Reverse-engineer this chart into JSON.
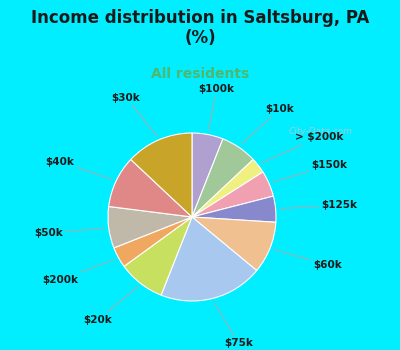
{
  "title": "Income distribution in Saltsburg, PA\n(%)",
  "subtitle": "All residents",
  "title_color": "#1a1a1a",
  "subtitle_color": "#4db870",
  "background_cyan": "#00eeff",
  "background_chart": "#d8f0e8",
  "watermark": "City-Data.com",
  "labels": [
    "$100k",
    "$10k",
    "> $200k",
    "$150k",
    "$125k",
    "$60k",
    "$75k",
    "$20k",
    "$200k",
    "$50k",
    "$40k",
    "$30k"
  ],
  "values": [
    6,
    7,
    3,
    5,
    5,
    10,
    20,
    9,
    4,
    8,
    10,
    13
  ],
  "colors": [
    "#b0a0d0",
    "#a0c898",
    "#f0f080",
    "#f0a0b0",
    "#8888cc",
    "#f0c090",
    "#a8c8f0",
    "#c8e060",
    "#f0a860",
    "#c0b8a8",
    "#e08888",
    "#c8a428"
  ],
  "wedge_edge_color": "white",
  "wedge_linewidth": 0.8,
  "label_fontsize": 7.5,
  "title_fontsize": 12,
  "subtitle_fontsize": 10
}
